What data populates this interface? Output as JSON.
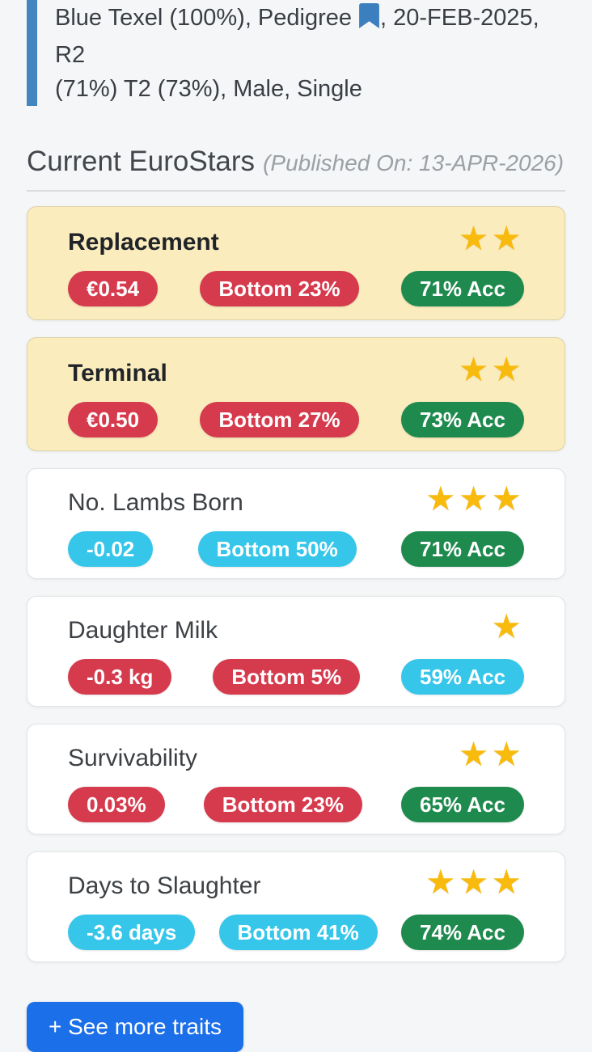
{
  "header": {
    "line1_before_icon": "Blue Texel (100%), Pedigree",
    "line1_after_icon": ", 20-FEB-2025, R2",
    "line2": "(71%) T2 (73%), Male, Single"
  },
  "section": {
    "title": "Current EuroStars",
    "published": "(Published On: 13-APR-2026)"
  },
  "traits": [
    {
      "name": "Replacement",
      "stars": 2,
      "highlight": true,
      "value": {
        "label": "€0.54",
        "color": "red"
      },
      "percentile": {
        "label": "Bottom 23%",
        "color": "red"
      },
      "accuracy": {
        "label": "71% Acc",
        "color": "green"
      }
    },
    {
      "name": "Terminal",
      "stars": 2,
      "highlight": true,
      "value": {
        "label": "€0.50",
        "color": "red"
      },
      "percentile": {
        "label": "Bottom 27%",
        "color": "red"
      },
      "accuracy": {
        "label": "73% Acc",
        "color": "green"
      }
    },
    {
      "name": "No. Lambs Born",
      "stars": 3,
      "highlight": false,
      "value": {
        "label": "-0.02",
        "color": "cyan"
      },
      "percentile": {
        "label": "Bottom 50%",
        "color": "cyan"
      },
      "accuracy": {
        "label": "71% Acc",
        "color": "green"
      }
    },
    {
      "name": "Daughter Milk",
      "stars": 1,
      "highlight": false,
      "value": {
        "label": "-0.3 kg",
        "color": "red"
      },
      "percentile": {
        "label": "Bottom 5%",
        "color": "red"
      },
      "accuracy": {
        "label": "59% Acc",
        "color": "cyan"
      }
    },
    {
      "name": "Survivability",
      "stars": 2,
      "highlight": false,
      "value": {
        "label": "0.03%",
        "color": "red"
      },
      "percentile": {
        "label": "Bottom 23%",
        "color": "red"
      },
      "accuracy": {
        "label": "65% Acc",
        "color": "green"
      }
    },
    {
      "name": "Days to Slaughter",
      "stars": 3,
      "highlight": false,
      "value": {
        "label": "-3.6 days",
        "color": "cyan"
      },
      "percentile": {
        "label": "Bottom 41%",
        "color": "cyan"
      },
      "accuracy": {
        "label": "74% Acc",
        "color": "green"
      }
    }
  ],
  "footer": {
    "see_more_label": "+ See more traits"
  },
  "icons": {
    "bookmark": "bookmark-icon",
    "star": "★"
  },
  "colors": {
    "red": "#D63A4D",
    "cyan": "#36C6EA",
    "green": "#1F8A4E",
    "star": "#F8BA0D",
    "accent_blue": "#4286C0",
    "bookmark_blue": "#3C7FBE",
    "card_highlight": "#FAECBD",
    "button_blue": "#1B6FE8"
  }
}
